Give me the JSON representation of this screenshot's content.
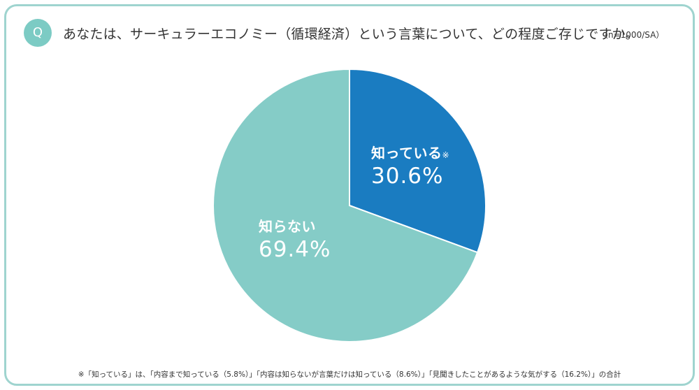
{
  "header": {
    "badge": "Q",
    "question": "あなたは、サーキュラーエコノミー（循環経済）という言葉について、どの程度ご存じですか。",
    "sample": "（n=1000/SA）"
  },
  "colors": {
    "known": "#1a7cc1",
    "unknown": "#85ccc7",
    "border": "#9fd4cf",
    "badge": "#7ccbc4"
  },
  "chart_data": {
    "type": "pie",
    "unit": "%",
    "slices": [
      {
        "label": "知っている",
        "note": "※",
        "value": 30.6,
        "display": "30.6%"
      },
      {
        "label": "知らない",
        "note": "",
        "value": 69.4,
        "display": "69.4%"
      }
    ],
    "start": "12 o'clock",
    "direction": "clockwise"
  },
  "footnote": "※「知っている」は、「内容まで知っている（5.8%）」「内容は知らないが言葉だけは知っている（8.6%）」「見聞きしたことがあるような気がする（16.2%）」の合計"
}
